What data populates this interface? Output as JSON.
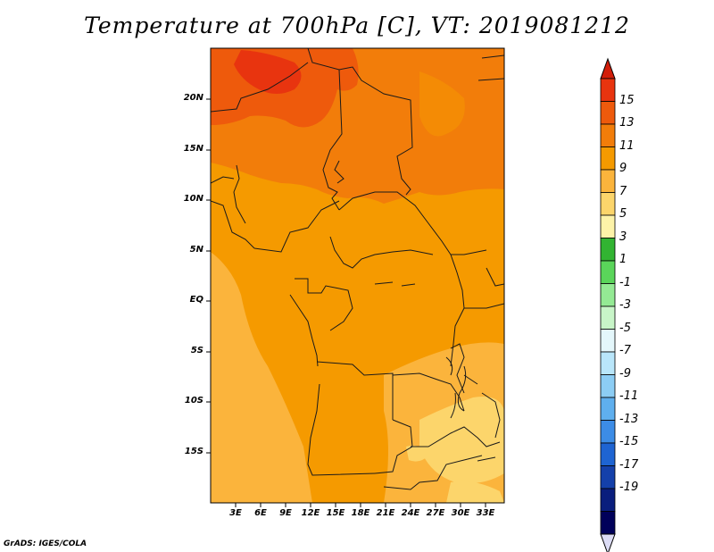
{
  "title": "Temperature at 700hPa [C], VT: 2019081212",
  "footer": "GrADS: IGES/COLA",
  "map": {
    "variable": "Temperature",
    "level": "700hPa",
    "units": "C",
    "valid_time": "2019081212",
    "lat_labels": [
      "20N",
      "15N",
      "10N",
      "5N",
      "EQ",
      "5S",
      "10S",
      "15S"
    ],
    "lon_labels": [
      "3E",
      "6E",
      "9E",
      "12E",
      "15E",
      "18E",
      "21E",
      "24E",
      "27E",
      "30E",
      "33E"
    ],
    "region": "Central Africa"
  },
  "colorbar": {
    "labels": [
      "15",
      "13",
      "11",
      "9",
      "7",
      "5",
      "3",
      "1",
      "-1",
      "-3",
      "-5",
      "-7",
      "-9",
      "-11",
      "-13",
      "-15",
      "-17",
      "-19"
    ],
    "colors": [
      "#e8340f",
      "#ee5a0c",
      "#f27d0a",
      "#f59a00",
      "#fbb43c",
      "#fcd56b",
      "#fdf3a8",
      "#32b432",
      "#5ad55a",
      "#94ea94",
      "#c8f5c8",
      "#e4f7fb",
      "#b9e6fa",
      "#8ccdf4",
      "#5fafee",
      "#3c8ce6",
      "#1e64d2",
      "#1440aa",
      "#0a1e7d",
      "#00005a"
    ],
    "top_triangle": "#d21e0a",
    "bottom_triangle": "#dcdcf5"
  }
}
